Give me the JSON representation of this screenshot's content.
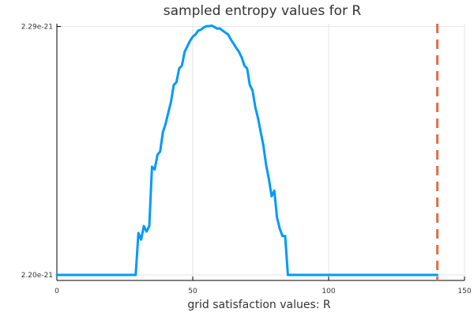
{
  "chart_data": {
    "type": "line",
    "title": "sampled entropy values for R",
    "xlabel": "grid satisfaction values: R",
    "ylabel": "",
    "xlim": [
      0,
      150
    ],
    "ylim": [
      2.198e-21,
      2.291e-21
    ],
    "xticks": [
      {
        "value": 0,
        "label": "0"
      },
      {
        "value": 50,
        "label": "50"
      },
      {
        "value": 100,
        "label": "100"
      },
      {
        "value": 150,
        "label": "150"
      }
    ],
    "yticks": [
      {
        "value": 2.2e-21,
        "label": "2.20e-21"
      },
      {
        "value": 2.29e-21,
        "label": "2.29e-21"
      }
    ],
    "grid": true,
    "legend": "none",
    "series": [
      {
        "color": "#009AFA",
        "points": [
          [
            0,
            2.2e-21
          ],
          [
            28,
            2.2e-21
          ],
          [
            29,
            2.2e-21
          ],
          [
            30,
            2.2152e-21
          ],
          [
            31,
            2.2128e-21
          ],
          [
            32,
            2.2177e-21
          ],
          [
            33,
            2.2157e-21
          ],
          [
            34,
            2.2177e-21
          ],
          [
            35,
            2.2392e-21
          ],
          [
            36,
            2.2382e-21
          ],
          [
            37,
            2.2435e-21
          ],
          [
            38,
            2.2447e-21
          ],
          [
            39,
            2.2517e-21
          ],
          [
            40,
            2.2547e-21
          ],
          [
            41,
            2.2588e-21
          ],
          [
            42,
            2.2628e-21
          ],
          [
            43,
            2.2688e-21
          ],
          [
            44,
            2.2698e-21
          ],
          [
            45,
            2.2748e-21
          ],
          [
            46,
            2.2758e-21
          ],
          [
            47,
            2.2808e-21
          ],
          [
            48,
            2.2828e-21
          ],
          [
            49,
            2.2848e-21
          ],
          [
            50,
            2.2863e-21
          ],
          [
            51,
            2.2871e-21
          ],
          [
            52,
            2.2885e-21
          ],
          [
            53,
            2.2888e-21
          ],
          [
            54,
            2.2896e-21
          ],
          [
            55,
            2.2901e-21
          ],
          [
            56,
            2.2901e-21
          ],
          [
            57,
            2.2903e-21
          ],
          [
            58,
            2.2898e-21
          ],
          [
            59,
            2.2892e-21
          ],
          [
            60,
            2.2893e-21
          ],
          [
            61,
            2.2885e-21
          ],
          [
            62,
            2.2878e-21
          ],
          [
            63,
            2.2871e-21
          ],
          [
            64,
            2.2853e-21
          ],
          [
            65,
            2.2838e-21
          ],
          [
            66,
            2.2822e-21
          ],
          [
            67,
            2.2808e-21
          ],
          [
            68,
            2.2788e-21
          ],
          [
            69,
            2.2758e-21
          ],
          [
            70,
            2.2748e-21
          ],
          [
            71,
            2.2688e-21
          ],
          [
            72,
            2.2668e-21
          ],
          [
            73,
            2.2608e-21
          ],
          [
            74,
            2.2568e-21
          ],
          [
            75,
            2.2518e-21
          ],
          [
            76,
            2.2468e-21
          ],
          [
            77,
            2.2398e-21
          ],
          [
            78,
            2.2348e-21
          ],
          [
            79,
            2.2285e-21
          ],
          [
            80,
            2.2305e-21
          ],
          [
            81,
            2.2208e-21
          ],
          [
            82,
            2.2168e-21
          ],
          [
            83,
            2.2141e-21
          ],
          [
            84,
            2.2141e-21
          ],
          [
            85,
            2.2e-21
          ],
          [
            86,
            2.2e-21
          ],
          [
            140,
            2.2e-21
          ]
        ]
      }
    ],
    "vline": {
      "x": 140,
      "color": "#E26F46",
      "style": "dashed"
    }
  }
}
